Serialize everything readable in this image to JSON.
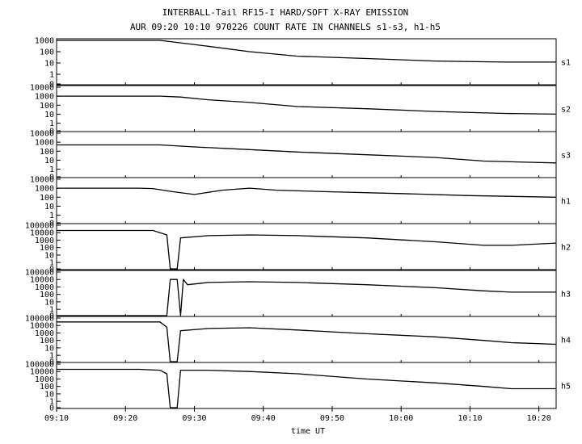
{
  "chart_data": {
    "type": "line",
    "title": "INTERBALL-Tail RF15-I HARD/SOFT X-RAY EMISSION",
    "subtitle": "AUR 09:20 10:10 970226  COUNT RATE IN CHANNELS s1-s3, h1-h5",
    "xlabel": "time UT",
    "x_ticks": [
      "09:10",
      "09:20",
      "09:30",
      "09:40",
      "09:50",
      "10:00",
      "10:10",
      "10:20"
    ],
    "xlim_minutes": [
      0,
      72.5
    ],
    "y_scale": "log",
    "legend": "right-of-each-panel",
    "panels": [
      {
        "name": "s1",
        "yticks": [
          "1000",
          "100",
          "10",
          "1",
          "0"
        ],
        "series": {
          "x": [
            0,
            5,
            12,
            15,
            18,
            22,
            28,
            35,
            45,
            55,
            65,
            72.5
          ],
          "y": [
            1000,
            1000,
            1000,
            1000,
            600,
            300,
            100,
            40,
            25,
            15,
            12,
            12
          ]
        }
      },
      {
        "name": "s2",
        "yticks": [
          "10000",
          "1000",
          "100",
          "10",
          "1",
          "0"
        ],
        "series": {
          "x": [
            0,
            5,
            12,
            15,
            18,
            22,
            28,
            35,
            45,
            55,
            65,
            72.5
          ],
          "y": [
            1000,
            1000,
            1000,
            1000,
            800,
            400,
            200,
            70,
            40,
            20,
            12,
            10
          ]
        }
      },
      {
        "name": "s3",
        "yticks": [
          "10000",
          "1000",
          "100",
          "10",
          "1",
          "0"
        ],
        "series": {
          "x": [
            0,
            5,
            12,
            15,
            20,
            28,
            35,
            45,
            55,
            62,
            68,
            72.5
          ],
          "y": [
            500,
            500,
            500,
            500,
            300,
            150,
            80,
            40,
            20,
            8,
            6,
            5
          ]
        }
      },
      {
        "name": "h1",
        "yticks": [
          "10000",
          "1000",
          "100",
          "10",
          "1",
          "0"
        ],
        "series": {
          "x": [
            0,
            5,
            12,
            14,
            17,
            20,
            24,
            28,
            32,
            40,
            50,
            60,
            72.5
          ],
          "y": [
            1000,
            1000,
            1000,
            900,
            400,
            200,
            600,
            1000,
            600,
            400,
            250,
            150,
            100
          ]
        }
      },
      {
        "name": "h2",
        "yticks": [
          "100000",
          "10000",
          "1000",
          "100",
          "10",
          "1",
          "0"
        ],
        "series": {
          "x": [
            0,
            5,
            12,
            14,
            16,
            16.5,
            17,
            17.5,
            18,
            22,
            28,
            35,
            45,
            55,
            62,
            66,
            72.5
          ],
          "y": [
            20000,
            20000,
            20000,
            20000,
            5000,
            0,
            0,
            0,
            2000,
            4000,
            5000,
            4000,
            2000,
            600,
            200,
            200,
            400
          ]
        }
      },
      {
        "name": "h3",
        "yticks": [
          "100000",
          "10000",
          "1000",
          "100",
          "10",
          "1",
          "0"
        ],
        "series": {
          "x": [
            0,
            15.9,
            16,
            16.5,
            17.5,
            18,
            18.4,
            19,
            22,
            28,
            35,
            45,
            55,
            62,
            66,
            72.5
          ],
          "y": [
            0,
            0,
            0,
            10000,
            10000,
            0,
            10000,
            2000,
            4000,
            5000,
            4000,
            2000,
            800,
            300,
            200,
            200
          ]
        }
      },
      {
        "name": "h4",
        "yticks": [
          "100000",
          "10000",
          "1000",
          "100",
          "10",
          "1",
          "0"
        ],
        "series": {
          "x": [
            0,
            5,
            12,
            15,
            16,
            16.5,
            17,
            17.5,
            18,
            22,
            28,
            35,
            45,
            55,
            62,
            66,
            72.5
          ],
          "y": [
            30000,
            30000,
            30000,
            30000,
            6000,
            0,
            0,
            0,
            2000,
            4000,
            5000,
            2500,
            800,
            300,
            100,
            50,
            30
          ]
        }
      },
      {
        "name": "h5",
        "yticks": [
          "100000",
          "10000",
          "1000",
          "100",
          "10",
          "1",
          "0"
        ],
        "series": {
          "x": [
            0,
            5,
            12,
            15,
            16,
            16.5,
            17,
            17.5,
            18,
            22,
            28,
            35,
            45,
            55,
            62,
            66,
            72.5
          ],
          "y": [
            20000,
            20000,
            20000,
            15000,
            5000,
            0,
            0,
            0,
            15000,
            15000,
            10000,
            5000,
            1000,
            300,
            100,
            50,
            50
          ]
        }
      }
    ]
  }
}
